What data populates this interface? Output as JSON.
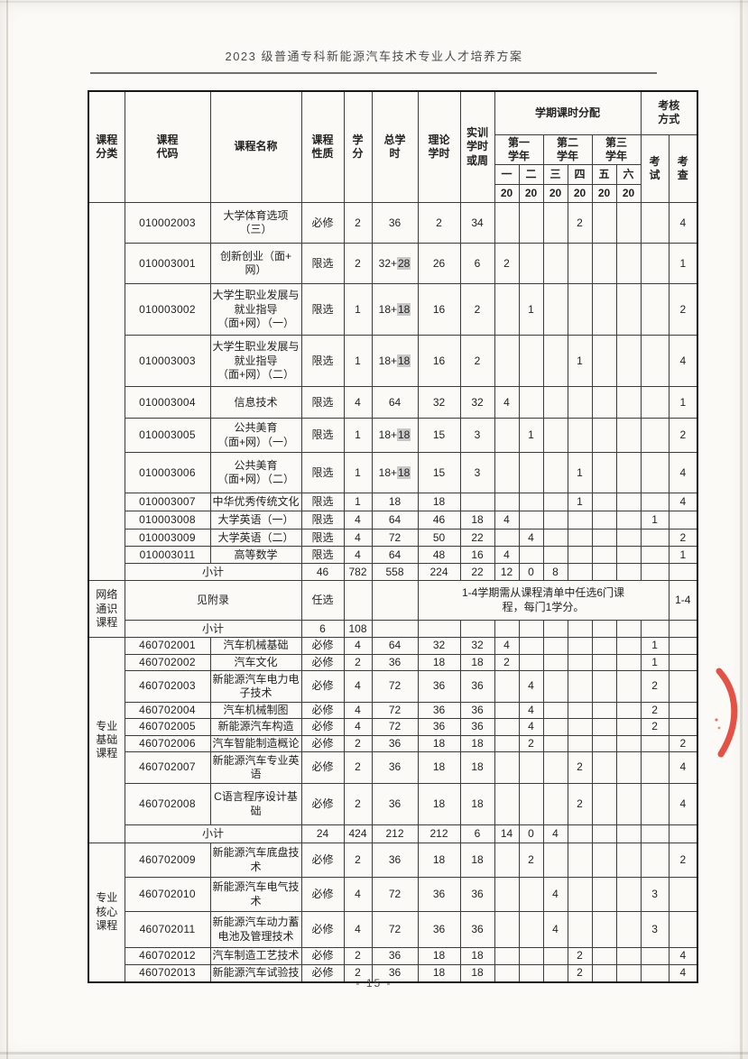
{
  "page": {
    "title": "2023 级普通专科新能源汽车技术专业人才培养方案",
    "page_number": "- 15 -"
  },
  "stamp": {
    "color": "#e03a2e",
    "name": "red-seal-arc"
  },
  "table": {
    "header": {
      "category": "课程\n分类",
      "code": "课程\n代码",
      "name": "课程名称",
      "nature": "课程\n性质",
      "credits": "学\n分",
      "total_hours": "总学\n时",
      "theory_hours": "理论\n学时",
      "practice_hours": "实训\n学时\n或周",
      "semester_allocation": "学期课时分配",
      "assessment": "考核\n方式",
      "year1": "第一\n学年",
      "year2": "第二\n学年",
      "year3": "第三\n学年",
      "semesters": [
        "一",
        "二",
        "三",
        "四",
        "五",
        "六"
      ],
      "weeks_per_semester": [
        "20",
        "20",
        "20",
        "20",
        "20",
        "20"
      ],
      "exam": "考\n试",
      "check": "考\n查"
    },
    "categories": [
      {
        "label": "",
        "span": 12
      },
      {
        "label": "网络\n通识\n课程",
        "span": 2
      },
      {
        "label": "专业\n基础\n课程",
        "span": 9
      },
      {
        "label": "专业\n核心\n课程",
        "span": 5
      }
    ],
    "rows": [
      {
        "type": "course",
        "code": "010002003",
        "name": "大学体育选项\n（三）",
        "nature": "必修",
        "credits": "2",
        "total": "36",
        "theory": "2",
        "practice": "34",
        "s4": "2",
        "check": "4"
      },
      {
        "type": "course",
        "code": "010003001",
        "name": "创新创业（面+\n网）",
        "nature": "限选",
        "credits": "2",
        "total": "32+",
        "total_hl": "28",
        "theory": "26",
        "practice": "6",
        "s1": "2",
        "check": "1"
      },
      {
        "type": "course",
        "code": "010003002",
        "name": "大学生职业发展与\n就业指导\n（面+网）（一）",
        "nature": "限选",
        "credits": "1",
        "total": "18+",
        "total_hl": "18",
        "theory": "16",
        "practice": "2",
        "s2": "1",
        "check": "2"
      },
      {
        "type": "course",
        "code": "010003003",
        "name": "大学生职业发展与\n就业指导\n（面+网）（二）",
        "nature": "限选",
        "credits": "1",
        "total": "18+",
        "total_hl": "18",
        "theory": "16",
        "practice": "2",
        "s4": "1",
        "check": "4"
      },
      {
        "type": "course",
        "code": "010003004",
        "name": "信息技术",
        "nature": "限选",
        "credits": "4",
        "total": "64",
        "theory": "32",
        "practice": "32",
        "s1": "4",
        "check": "1"
      },
      {
        "type": "course",
        "code": "010003005",
        "name": "公共美育\n（面+网）（一）",
        "nature": "限选",
        "credits": "1",
        "total": "18+",
        "total_hl": "18",
        "theory": "15",
        "practice": "3",
        "s2": "1",
        "check": "2"
      },
      {
        "type": "course",
        "code": "010003006",
        "name": "公共美育\n（面+网）（二）",
        "nature": "限选",
        "credits": "1",
        "total": "18+",
        "total_hl": "18",
        "theory": "15",
        "practice": "3",
        "s4": "1",
        "check": "4"
      },
      {
        "type": "course",
        "code": "010003007",
        "name": "中华优秀传统文化",
        "nature": "限选",
        "credits": "1",
        "total": "18",
        "theory": "18",
        "practice": "",
        "s4": "1",
        "check": "4"
      },
      {
        "type": "course",
        "code": "010003008",
        "name": "大学英语（一）",
        "nature": "限选",
        "credits": "4",
        "total": "64",
        "theory": "46",
        "practice": "18",
        "s1": "4",
        "exam": "1"
      },
      {
        "type": "course",
        "code": "010003009",
        "name": "大学英语（二）",
        "nature": "限选",
        "credits": "4",
        "total": "72",
        "theory": "50",
        "practice": "22",
        "s2": "4",
        "check": "2"
      },
      {
        "type": "course",
        "code": "010003011",
        "name": "高等数学",
        "nature": "限选",
        "credits": "4",
        "total": "64",
        "theory": "48",
        "practice": "16",
        "s1": "4",
        "check": "1"
      },
      {
        "type": "subtotal",
        "label": "小计",
        "credits": "46",
        "total": "782",
        "theory": "558",
        "practice": "224",
        "s1": "22",
        "s2": "12",
        "s3": "0",
        "s4": "8"
      },
      {
        "type": "note",
        "name": "见附录",
        "nature": "任选",
        "note": "1-4学期需从课程清单中任选6门课\n程，每门1学分。",
        "check": "1-4"
      },
      {
        "type": "subtotal",
        "label": "小计",
        "credits": "6",
        "total": "108"
      },
      {
        "type": "course",
        "code": "460702001",
        "name": "汽车机械基础",
        "nature": "必修",
        "credits": "4",
        "total": "64",
        "theory": "32",
        "practice": "32",
        "s1": "4",
        "exam": "1"
      },
      {
        "type": "course",
        "code": "460702002",
        "name": "汽车文化",
        "nature": "必修",
        "credits": "2",
        "total": "36",
        "theory": "18",
        "practice": "18",
        "s1": "2",
        "exam": "1"
      },
      {
        "type": "course",
        "code": "460702003",
        "name": "新能源汽车电力电\n子技术",
        "nature": "必修",
        "credits": "4",
        "total": "72",
        "theory": "36",
        "practice": "36",
        "s2": "4",
        "exam": "2"
      },
      {
        "type": "course",
        "code": "460702004",
        "name": "汽车机械制图",
        "nature": "必修",
        "credits": "4",
        "total": "72",
        "theory": "36",
        "practice": "36",
        "s2": "4",
        "exam": "2"
      },
      {
        "type": "course",
        "code": "460702005",
        "name": "新能源汽车构造",
        "nature": "必修",
        "credits": "4",
        "total": "72",
        "theory": "36",
        "practice": "36",
        "s2": "4",
        "exam": "2"
      },
      {
        "type": "course",
        "code": "460702006",
        "name": "汽车智能制造概论",
        "nature": "必修",
        "credits": "2",
        "total": "36",
        "theory": "18",
        "practice": "18",
        "s2": "2",
        "check": "2"
      },
      {
        "type": "course",
        "code": "460702007",
        "name": "新能源汽车专业英\n语",
        "nature": "必修",
        "credits": "2",
        "total": "36",
        "theory": "18",
        "practice": "18",
        "s4": "2",
        "check": "4"
      },
      {
        "type": "course",
        "code": "460702008",
        "name": "C语言程序设计基\n础",
        "nature": "必修",
        "credits": "2",
        "total": "36",
        "theory": "18",
        "practice": "18",
        "s4": "2",
        "check": "4"
      },
      {
        "type": "subtotal",
        "label": "小计",
        "credits": "24",
        "total": "424",
        "theory": "212",
        "practice": "212",
        "s1": "6",
        "s2": "14",
        "s3": "0",
        "s4": "4"
      },
      {
        "type": "course",
        "code": "460702009",
        "name": "新能源汽车底盘技\n术",
        "nature": "必修",
        "credits": "2",
        "total": "36",
        "theory": "18",
        "practice": "18",
        "s2": "2",
        "check": "2"
      },
      {
        "type": "course",
        "code": "460702010",
        "name": "新能源汽车电气技\n术",
        "nature": "必修",
        "credits": "4",
        "total": "72",
        "theory": "36",
        "practice": "36",
        "s3": "4",
        "exam": "3"
      },
      {
        "type": "course",
        "code": "460702011",
        "name": "新能源汽车动力蓄\n电池及管理技术",
        "nature": "必修",
        "credits": "4",
        "total": "72",
        "theory": "36",
        "practice": "36",
        "s3": "4",
        "exam": "3"
      },
      {
        "type": "course",
        "code": "460702012",
        "name": "汽车制造工艺技术",
        "nature": "必修",
        "credits": "2",
        "total": "36",
        "theory": "18",
        "practice": "18",
        "s4": "2",
        "check": "4"
      },
      {
        "type": "course",
        "code": "460702013",
        "name": "新能源汽车试验技",
        "nature": "必修",
        "credits": "2",
        "total": "36",
        "theory": "18",
        "practice": "18",
        "s4": "2",
        "check": "4"
      }
    ]
  }
}
